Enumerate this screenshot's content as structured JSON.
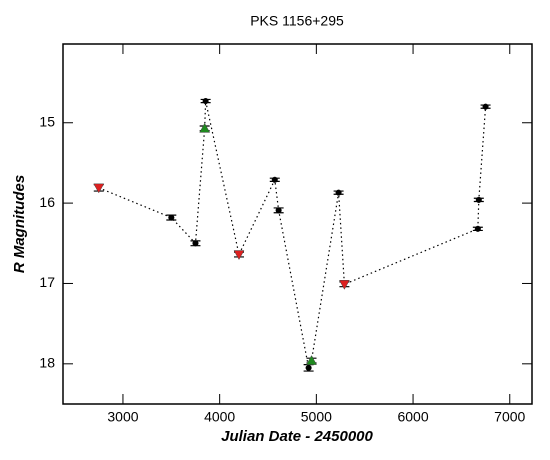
{
  "chart_data": {
    "type": "line",
    "title": "PKS 1156+295",
    "xlabel": "Julian Date - 2450000",
    "ylabel": "R Magnitudes",
    "xlim": [
      2380,
      7230
    ],
    "ylim": [
      18.5,
      14.02
    ],
    "xticks": [
      3000,
      4000,
      5000,
      6000,
      7000
    ],
    "yticks": [
      15,
      16,
      17,
      18
    ],
    "line_style": "dotted",
    "marker_colors": {
      "circle": "#000000",
      "triangle-down": "#dd2020",
      "triangle-up": "#1f8a1f"
    },
    "series": [
      {
        "color": "#000000",
        "x": [
          2750,
          3500,
          3750,
          3845,
          3855,
          4200,
          4570,
          4610,
          4920,
          4950,
          5230,
          5290,
          6670,
          6680,
          6750
        ],
        "values": [
          15.81,
          16.18,
          16.5,
          15.07,
          14.73,
          16.64,
          15.71,
          16.09,
          18.05,
          17.96,
          15.87,
          17.01,
          16.32,
          15.96,
          14.8
        ],
        "errors": [
          0.04,
          0.03,
          0.03,
          0.03,
          0.02,
          0.03,
          0.02,
          0.03,
          0.04,
          0.03,
          0.02,
          0.03,
          0.02,
          0.02,
          0.02
        ],
        "markers": [
          "triangle-down",
          "circle",
          "circle",
          "triangle-up",
          "circle",
          "triangle-down",
          "circle",
          "circle",
          "circle",
          "triangle-up",
          "circle",
          "triangle-down",
          "circle",
          "circle",
          "circle"
        ]
      }
    ]
  }
}
